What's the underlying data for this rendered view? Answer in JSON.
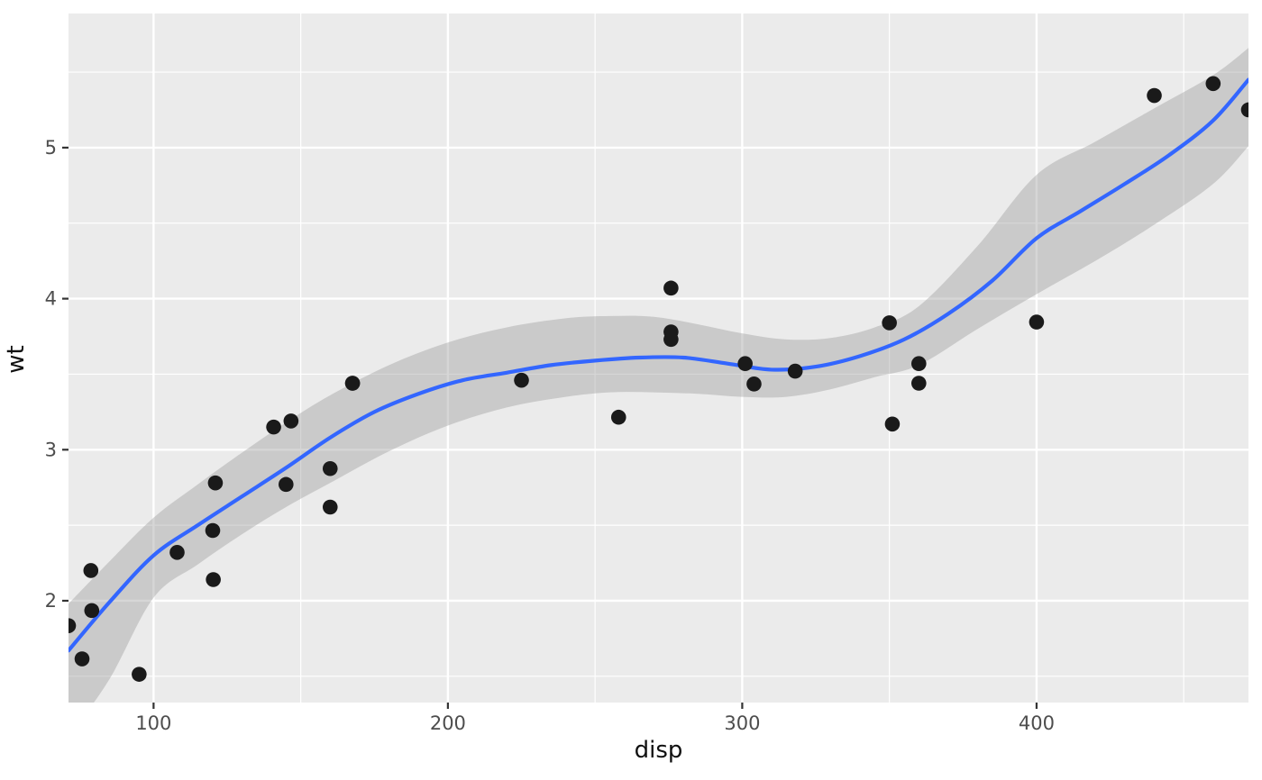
{
  "figure": {
    "background": "#FFFFFF",
    "panel_background": "#EBEBEB",
    "grid_color": "#FFFFFF",
    "tick_mark_color": "#333333",
    "tick_label_color": "#4D4D4D",
    "axis_title_color": "#111111",
    "point_color": "#1A1A1A",
    "smooth_line_color": "#3366FF",
    "ribbon_color": "#999999",
    "ribbon_opacity": 0.4
  },
  "chart_data": {
    "type": "scatter",
    "title": "",
    "xlabel": "disp",
    "ylabel": "wt",
    "xlim": [
      71.1,
      472
    ],
    "ylim": [
      1.326,
      5.888
    ],
    "x_ticks": [
      100,
      200,
      300,
      400
    ],
    "x_minor_ticks": [
      150,
      250,
      350,
      450
    ],
    "y_ticks": [
      2,
      3,
      4,
      5
    ],
    "y_minor_ticks": [
      1.5,
      2.5,
      3.5,
      4.5,
      5.5
    ],
    "grid": true,
    "legend_position": "none",
    "points": [
      [
        160.0,
        2.62
      ],
      [
        160.0,
        2.875
      ],
      [
        108.0,
        2.32
      ],
      [
        258.0,
        3.215
      ],
      [
        360.0,
        3.44
      ],
      [
        225.0,
        3.46
      ],
      [
        360.0,
        3.57
      ],
      [
        146.7,
        3.19
      ],
      [
        140.8,
        3.15
      ],
      [
        167.6,
        3.44
      ],
      [
        167.6,
        3.44
      ],
      [
        275.8,
        4.07
      ],
      [
        275.8,
        3.73
      ],
      [
        275.8,
        3.78
      ],
      [
        472.0,
        5.25
      ],
      [
        460.0,
        5.424
      ],
      [
        440.0,
        5.345
      ],
      [
        78.7,
        2.2
      ],
      [
        75.7,
        1.615
      ],
      [
        71.1,
        1.835
      ],
      [
        120.1,
        2.465
      ],
      [
        318.0,
        3.52
      ],
      [
        304.0,
        3.435
      ],
      [
        350.0,
        3.84
      ],
      [
        400.0,
        3.845
      ],
      [
        79.0,
        1.935
      ],
      [
        120.3,
        2.14
      ],
      [
        95.1,
        1.513
      ],
      [
        351.0,
        3.17
      ],
      [
        145.0,
        2.77
      ],
      [
        121.0,
        2.78
      ],
      [
        301.0,
        3.57
      ]
    ],
    "smooth": {
      "method": "loess",
      "x": [
        71.1,
        85,
        100,
        115,
        130,
        145,
        160,
        175,
        190,
        205,
        220,
        235,
        250,
        265,
        280,
        295,
        310,
        325,
        340,
        355,
        370,
        385,
        400,
        415,
        430,
        445,
        460,
        472
      ],
      "y": [
        1.67,
        1.99,
        2.3,
        2.5,
        2.69,
        2.88,
        3.08,
        3.25,
        3.37,
        3.46,
        3.51,
        3.56,
        3.59,
        3.61,
        3.61,
        3.57,
        3.53,
        3.55,
        3.62,
        3.73,
        3.9,
        4.12,
        4.4,
        4.58,
        4.76,
        4.95,
        5.18,
        5.45
      ]
    },
    "ribbon": {
      "x": [
        71.1,
        85,
        100,
        115,
        130,
        145,
        160,
        180,
        200,
        220,
        240,
        255,
        270,
        285,
        300,
        315,
        330,
        345,
        360,
        380,
        400,
        420,
        440,
        460,
        472
      ],
      "upper": [
        1.98,
        2.26,
        2.55,
        2.77,
        2.98,
        3.18,
        3.36,
        3.56,
        3.71,
        3.81,
        3.87,
        3.885,
        3.88,
        3.83,
        3.77,
        3.73,
        3.74,
        3.81,
        3.95,
        4.35,
        4.82,
        5.04,
        5.26,
        5.48,
        5.66
      ],
      "lower": [
        1.1,
        1.48,
        2.02,
        2.24,
        2.44,
        2.62,
        2.78,
        2.99,
        3.16,
        3.28,
        3.35,
        3.38,
        3.38,
        3.37,
        3.35,
        3.35,
        3.4,
        3.48,
        3.56,
        3.8,
        4.03,
        4.25,
        4.49,
        4.76,
        5.01
      ]
    }
  }
}
